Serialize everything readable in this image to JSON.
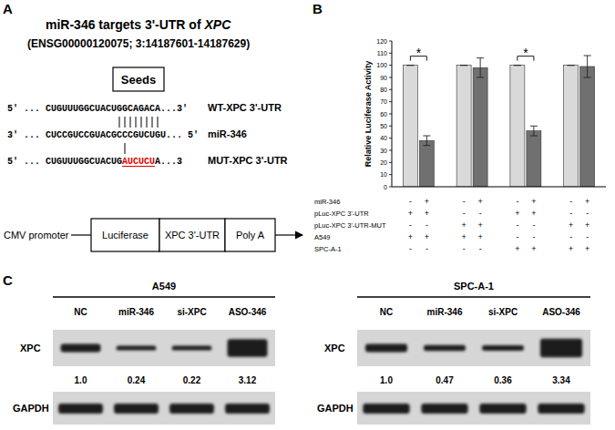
{
  "panel_a": {
    "label": "A",
    "title": "miR-346 targets 3'-UTR of ",
    "title_gene": "XPC",
    "subtitle": "(ENSG00000120075; 3:14187601-14187629)",
    "seed_label": "Seeds",
    "wt": {
      "sequence": "5' ... CUGUUUGGCUACUGGCAGACA...3'",
      "name": "WT-XPC 3'-UTR"
    },
    "mirna": {
      "sequence": "3' ... CUCCGUCCGUACGCCCGUCUGU... 5'",
      "name": "miR-346"
    },
    "mut": {
      "sequence_start": "5' ... CUGUUUGGCUACUG",
      "mutation": "AUCUCU",
      "sequence_end": "A...3",
      "name": "MUT-XPC 3'-UTR"
    },
    "construct": {
      "promoter": "CMV promoter",
      "elements": [
        "Luciferase",
        "XPC 3'-UTR",
        "Poly A"
      ]
    }
  },
  "chart_data": {
    "type": "bar",
    "panel_label": "B",
    "y_label": "Relative Luciferase Activity",
    "categories": [
      null,
      null,
      null,
      null,
      null,
      null,
      null,
      null
    ],
    "series": [
      {
        "values": [
          100,
          38,
          100,
          98,
          100,
          46,
          100,
          99
        ],
        "errors": [
          0,
          4,
          0,
          8,
          0,
          4,
          0,
          9
        ],
        "colors": [
          "#d9d9d9",
          "#707070",
          "#d9d9d9",
          "#707070",
          "#d9d9d9",
          "#707070",
          "#d9d9d9",
          "#707070"
        ]
      }
    ],
    "ylim": [
      0,
      120
    ],
    "yticks": [
      0,
      10,
      20,
      30,
      40,
      50,
      60,
      70,
      80,
      90,
      100,
      110,
      120
    ],
    "grid": false,
    "tick_labels": "y",
    "annotations": [
      {
        "text": "*",
        "bars": [
          0,
          1
        ]
      },
      {
        "text": "*",
        "bars": [
          4,
          5
        ]
      }
    ]
  },
  "condition_table": {
    "rows": [
      {
        "label": "miR-346",
        "signs": [
          "-",
          "+",
          "-",
          "+",
          "-",
          "+",
          "-",
          "+"
        ]
      },
      {
        "label": "pLuc-XPC 3'-UTR",
        "signs": [
          "+",
          "+",
          "-",
          "-",
          "+",
          "+",
          "-",
          "-"
        ]
      },
      {
        "label": "pLuc-XPC 3'-UTR-MUT",
        "signs": [
          "-",
          "-",
          "+",
          "+",
          "-",
          "-",
          "+",
          "+"
        ]
      },
      {
        "label": "A549",
        "signs": [
          "+",
          "+",
          "+",
          "+",
          "-",
          "-",
          "-",
          "-"
        ]
      },
      {
        "label": "SPC-A-1",
        "signs": [
          "-",
          "-",
          "-",
          "-",
          "+",
          "+",
          "+",
          "+"
        ]
      }
    ]
  },
  "panel_c": {
    "label": "C",
    "blots": [
      {
        "cell_line": "A549",
        "lanes": [
          "NC",
          "miR-346",
          "si-XPC",
          "ASO-346"
        ],
        "target": {
          "protein": "XPC",
          "values": [
            1.0,
            0.24,
            0.22,
            3.12
          ],
          "value_labels": [
            "1.0",
            "0.24",
            "0.22",
            "3.12"
          ]
        },
        "control": {
          "protein": "GAPDH"
        }
      },
      {
        "cell_line": "SPC-A-1",
        "lanes": [
          "NC",
          "miR-346",
          "si-XPC",
          "ASO-346"
        ],
        "target": {
          "protein": "XPC",
          "values": [
            1.0,
            0.47,
            0.36,
            3.34
          ],
          "value_labels": [
            "1.0",
            "0.47",
            "0.36",
            "3.34"
          ]
        },
        "control": {
          "protein": "GAPDH"
        }
      }
    ]
  }
}
